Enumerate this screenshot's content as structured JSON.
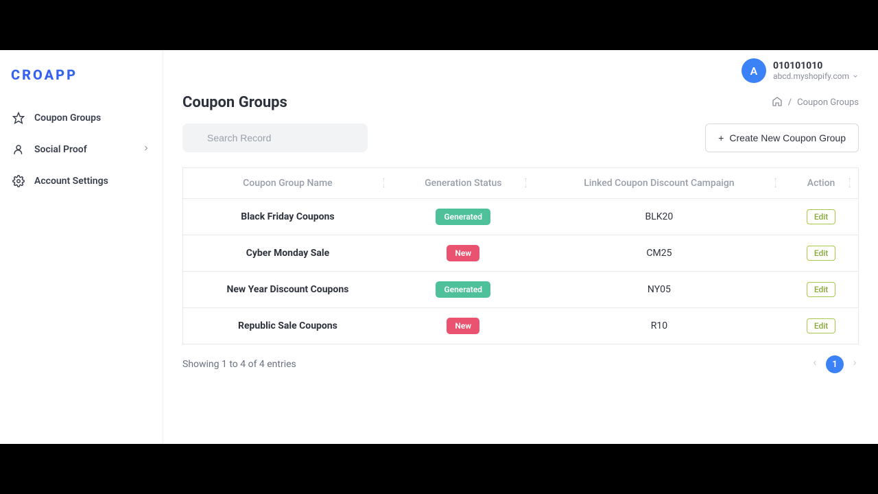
{
  "brand": "CROAPP",
  "nav": {
    "items": [
      {
        "label": "Coupon Groups",
        "icon": "star"
      },
      {
        "label": "Social Proof",
        "icon": "user",
        "expandable": true
      },
      {
        "label": "Account Settings",
        "icon": "gear"
      }
    ]
  },
  "user": {
    "avatar_letter": "A",
    "id": "010101010",
    "shop": "abcd.myshopify.com"
  },
  "page": {
    "title": "Coupon Groups",
    "breadcrumb_current": "Coupon Groups"
  },
  "toolbar": {
    "search_placeholder": "Search Record",
    "create_label": "Create New Coupon Group"
  },
  "table": {
    "columns": {
      "name": "Coupon Group Name",
      "status": "Generation Status",
      "campaign": "Linked Coupon Discount Campaign",
      "action": "Action"
    },
    "rows": [
      {
        "name": "Black Friday Coupons",
        "status": "Generated",
        "status_type": "generated",
        "campaign": "BLK20",
        "action": "Edit"
      },
      {
        "name": "Cyber Monday Sale",
        "status": "New",
        "status_type": "new",
        "campaign": "CM25",
        "action": "Edit"
      },
      {
        "name": "New Year Discount Coupons",
        "status": "Generated",
        "status_type": "generated",
        "campaign": "NY05",
        "action": "Edit"
      },
      {
        "name": "Republic Sale Coupons",
        "status": "New",
        "status_type": "new",
        "campaign": "R10",
        "action": "Edit"
      }
    ],
    "status_badge_colors": {
      "generated": "#4ec09a",
      "new": "#e9536f"
    },
    "edit_button": {
      "border_color": "#a8c84a",
      "text_color": "#88a93a"
    }
  },
  "pagination": {
    "summary": "Showing 1 to 4 of 4 entries",
    "current_page": "1"
  },
  "colors": {
    "brand": "#3662f0",
    "primary": "#3b82f6",
    "text": "#2d323d",
    "muted": "#9aa0ab",
    "border": "#e7e9ec",
    "search_bg": "#f2f3f5"
  }
}
